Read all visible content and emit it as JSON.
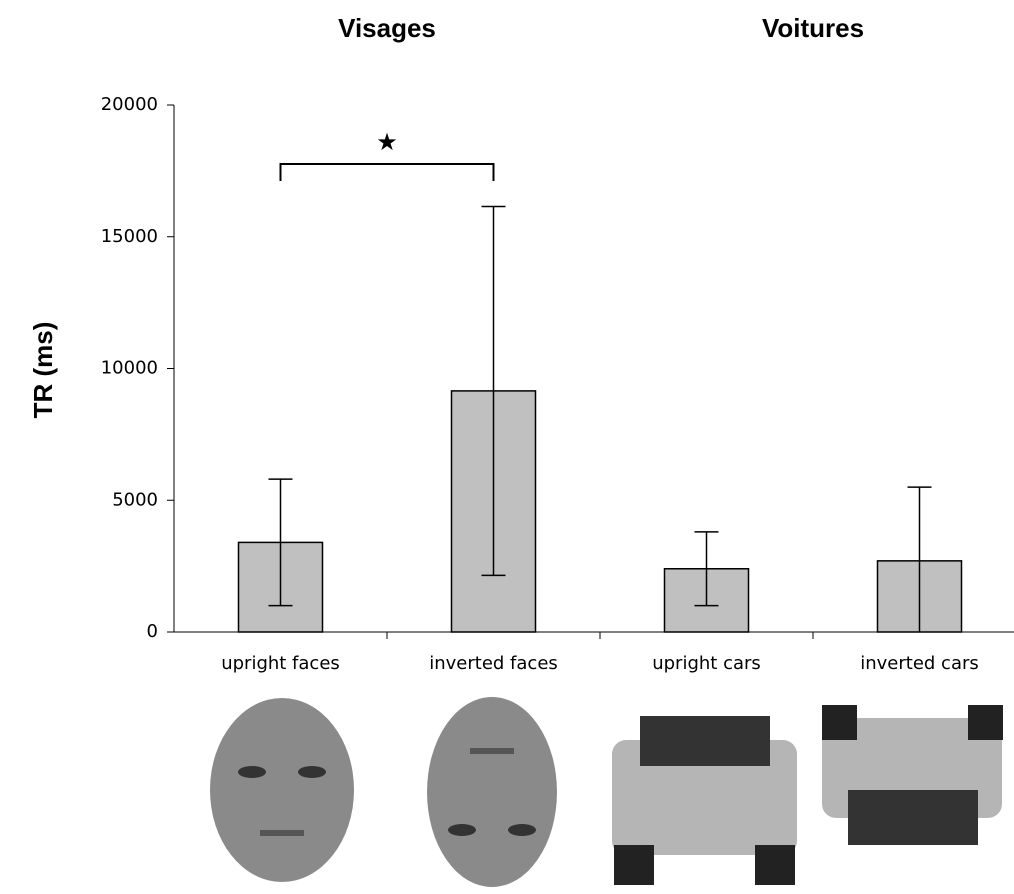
{
  "chart_data": {
    "type": "bar",
    "title_groups": [
      "Visages",
      "Voitures"
    ],
    "ylabel": "TR (ms)",
    "categories": [
      "upright faces",
      "inverted faces",
      "upright cars",
      "inverted cars"
    ],
    "values": [
      3400,
      9150,
      2400,
      2700
    ],
    "errors": [
      2400,
      7000,
      1400,
      2800
    ],
    "color": "#c0c0c0",
    "ylim": [
      0,
      20000
    ],
    "yticks": [
      0,
      5000,
      10000,
      15000,
      20000
    ],
    "annotation": "★"
  }
}
